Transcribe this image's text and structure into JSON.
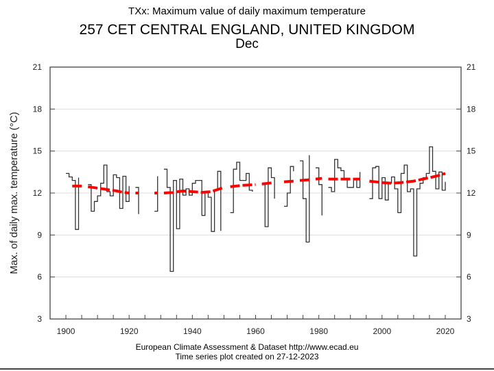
{
  "chart_data": {
    "type": "line",
    "title": "TXx: Maximum value of daily maximum temperature",
    "subtitle": "257 CET CENTRAL ENGLAND, UNITED KINGDOM",
    "period": "Dec",
    "xlabel": "",
    "ylabel": "Max. of daily max. temperature (°C)",
    "xlim": [
      1895,
      2025
    ],
    "ylim": [
      3,
      21
    ],
    "xticks": [
      1900,
      1920,
      1940,
      1960,
      1980,
      2000,
      2020
    ],
    "xminor_step": 5,
    "yticks": [
      3,
      6,
      9,
      12,
      15,
      18,
      21
    ],
    "grid": true,
    "legend": "none",
    "series": [
      {
        "name": "TXx Dec",
        "style": "steps",
        "color": "#333333",
        "x": [
          1900,
          1901,
          1902,
          1903,
          1904,
          1905,
          1906,
          1907,
          1908,
          1909,
          1910,
          1911,
          1912,
          1913,
          1914,
          1915,
          1916,
          1917,
          1918,
          1919,
          1920,
          1921,
          1922,
          1923,
          1924,
          1925,
          1926,
          1927,
          1928,
          1929,
          1930,
          1931,
          1932,
          1933,
          1934,
          1935,
          1936,
          1937,
          1938,
          1939,
          1940,
          1941,
          1942,
          1943,
          1944,
          1945,
          1946,
          1947,
          1948,
          1949,
          1950,
          1951,
          1952,
          1953,
          1954,
          1955,
          1956,
          1957,
          1958,
          1959,
          1960,
          1961,
          1962,
          1963,
          1964,
          1965,
          1966,
          1967,
          1968,
          1969,
          1970,
          1971,
          1972,
          1973,
          1974,
          1975,
          1976,
          1977,
          1978,
          1979,
          1980,
          1981,
          1982,
          1983,
          1984,
          1985,
          1986,
          1987,
          1988,
          1989,
          1990,
          1991,
          1992,
          1993,
          1994,
          1995,
          1996,
          1997,
          1998,
          1999,
          2000,
          2001,
          2002,
          2003,
          2004,
          2005,
          2006,
          2007,
          2008,
          2009,
          2010,
          2011,
          2012,
          2013,
          2014,
          2015,
          2016,
          2017,
          2018,
          2019,
          2020
        ],
        "values": [
          13.4,
          13.15,
          12.9,
          9.4,
          13.1,
          null,
          null,
          12.6,
          10.7,
          11.4,
          11.8,
          12.7,
          14.0,
          12.1,
          11.8,
          13.3,
          13.1,
          10.9,
          13.2,
          11.4,
          12.5,
          null,
          12.4,
          10.5,
          null,
          null,
          null,
          null,
          10.7,
          13.2,
          null,
          13.7,
          12.4,
          6.4,
          12.9,
          9.45,
          13.0,
          11.85,
          12.3,
          11.85,
          12.7,
          12.9,
          12.9,
          10.4,
          12.05,
          11.7,
          9.25,
          12.2,
          13.55,
          9.3,
          null,
          null,
          10.6,
          13.7,
          14.2,
          12.9,
          12.9,
          13.4,
          12.2,
          12.1,
          null,
          null,
          12.6,
          9.6,
          13.8,
          13.1,
          11.6,
          null,
          null,
          11.05,
          12.0,
          13.9,
          13.55,
          null,
          14.3,
          11.6,
          8.5,
          14.7,
          null,
          13.8,
          12.6,
          10.4,
          null,
          12.4,
          12.1,
          14.4,
          13.8,
          13.6,
          13.0,
          12.4,
          12.4,
          12.95,
          12.4,
          13.5,
          null,
          null,
          11.6,
          13.8,
          13.9,
          11.6,
          13.1,
          11.5,
          12.7,
          13.15,
          12.3,
          10.6,
          13.4,
          14.0,
          12.1,
          12.3,
          7.5,
          12.3,
          12.7,
          13.1,
          13.4,
          15.3,
          13.55,
          12.3,
          13.5,
          12.2,
          12.8
        ]
      },
      {
        "name": "Smoothed trend",
        "style": "dashed",
        "color": "#ff0000",
        "segments": [
          {
            "x": [
              1902,
              1905
            ],
            "y": [
              12.5,
              12.5
            ]
          },
          {
            "x": [
              1907,
              1910,
              1913,
              1916,
              1918,
              1920
            ],
            "y": [
              12.45,
              12.35,
              12.25,
              12.15,
              12.05,
              12.0
            ]
          },
          {
            "x": [
              1922,
              1923
            ],
            "y": [
              12.0,
              12.0
            ]
          },
          {
            "x": [
              1928,
              1929
            ],
            "y": [
              12.0,
              12.0
            ]
          },
          {
            "x": [
              1931,
              1934,
              1937,
              1940,
              1943,
              1946,
              1948,
              1950
            ],
            "y": [
              12.0,
              12.05,
              12.15,
              12.1,
              12.05,
              12.1,
              12.25,
              12.4
            ]
          },
          {
            "x": [
              1952,
              1956,
              1960
            ],
            "y": [
              12.45,
              12.55,
              12.6
            ]
          },
          {
            "x": [
              1962,
              1966
            ],
            "y": [
              12.65,
              12.75
            ]
          },
          {
            "x": [
              1969,
              1972
            ],
            "y": [
              12.8,
              12.85
            ]
          },
          {
            "x": [
              1974,
              1977
            ],
            "y": [
              12.9,
              12.95
            ]
          },
          {
            "x": [
              1979,
              1981
            ],
            "y": [
              13.0,
              13.05
            ]
          },
          {
            "x": [
              1983,
              1988,
              1993
            ],
            "y": [
              13.0,
              13.0,
              13.0
            ]
          },
          {
            "x": [
              1996,
              2000,
              2003,
              2006,
              2010,
              2014,
              2017,
              2020
            ],
            "y": [
              12.85,
              12.75,
              12.7,
              12.75,
              12.85,
              13.05,
              13.2,
              13.4
            ]
          }
        ]
      }
    ]
  },
  "footer": {
    "source": "European Climate Assessment & Dataset  http://www.ecad.eu",
    "created": "Time series plot created on 27-12-2023"
  }
}
